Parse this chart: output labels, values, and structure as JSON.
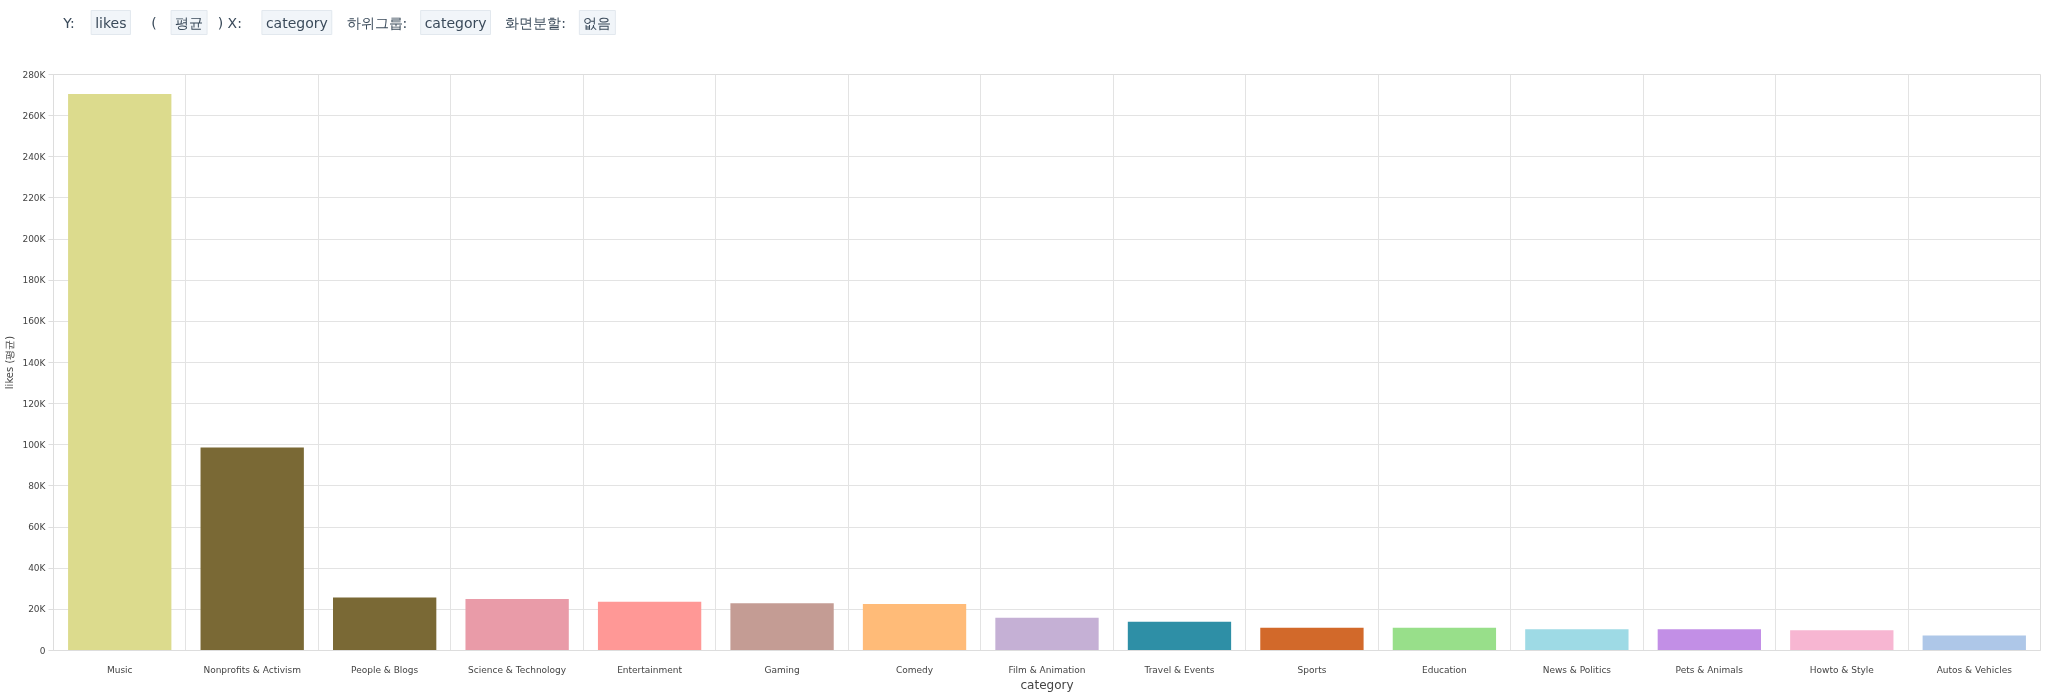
{
  "chart_data": {
    "type": "bar",
    "xlabel": "category",
    "ylabel": "likes (평균)",
    "annotations": [
      "Y:",
      "likes",
      "(",
      "평균",
      ") X:",
      "category",
      "하위그룹:",
      "category",
      "화면분할:",
      "없음"
    ],
    "categories": [
      "Music",
      "Nonprofits & Activism",
      "People & Blogs",
      "Science & Technology",
      "Entertainment",
      "Gaming",
      "Comedy",
      "Film & Animation",
      "Travel & Events",
      "Sports",
      "Education",
      "News & Politics",
      "Pets & Animals",
      "Howto & Style",
      "Autos & Vehicles"
    ],
    "values": [
      270500,
      98700,
      25800,
      25000,
      23700,
      23000,
      22600,
      15900,
      14000,
      11100,
      11100,
      10300,
      10300,
      9800,
      7300
    ],
    "colors": [
      "#dcdb8d",
      "#7a6935",
      "#7a6935",
      "#e99ba8",
      "#ff9896",
      "#c49c94",
      "#ffbb78",
      "#c5b0d5",
      "#2e8fa6",
      "#d2692a",
      "#98df8a",
      "#9edae5",
      "#c28fe6",
      "#f7b6d2",
      "#aec7e8"
    ],
    "ylim": [
      0,
      280000
    ],
    "yticks": [
      0,
      {
        "value": 20000,
        "label": "20K"
      },
      {
        "value": 40000,
        "label": "40K"
      },
      {
        "value": 60000,
        "label": "60K"
      },
      {
        "value": 80000,
        "label": "80K"
      },
      {
        "value": 100000,
        "label": "100K"
      },
      {
        "value": 120000,
        "label": "120K"
      },
      {
        "value": 140000,
        "label": "140K"
      },
      {
        "value": 160000,
        "label": "160K"
      },
      {
        "value": 180000,
        "label": "180K"
      },
      {
        "value": 200000,
        "label": "200K"
      },
      {
        "value": 220000,
        "label": "220K"
      },
      {
        "value": 240000,
        "label": "240K"
      },
      {
        "value": 260000,
        "label": "260K"
      },
      {
        "value": 280000,
        "label": "280K"
      }
    ],
    "grid": true
  }
}
